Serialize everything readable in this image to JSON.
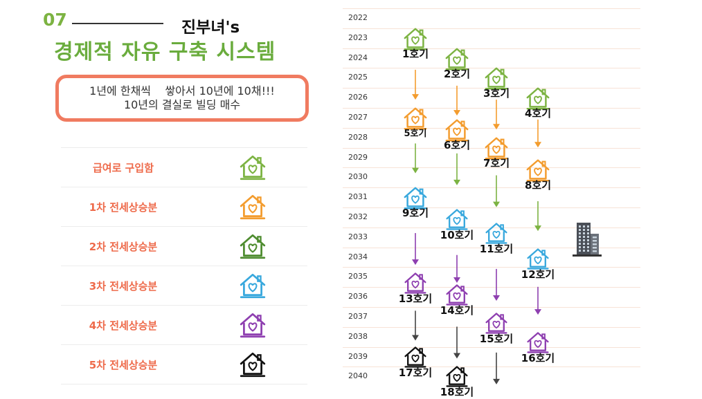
{
  "header": {
    "section_number": "07",
    "brand": "진부녀's",
    "title": "경제적 자유 구축 시스템"
  },
  "callout": {
    "line1": "1년에 한채씩    쌓아서 10년에 10채!!!",
    "line2": "10년의 결실로 빌딩 매수"
  },
  "colors": {
    "salary": "#7cb342",
    "round1": "#f39c2e",
    "round2": "#4e8c2f",
    "round3": "#38a8dd",
    "round4": "#8e3fb0",
    "round5": "#111111",
    "accent": "#ee6a4a",
    "title_green": "#6aac3d"
  },
  "legend": [
    {
      "label": "급여로 구입함",
      "color": "#7cb342",
      "icon": "house-heart-icon"
    },
    {
      "label": "1차 전세상승분",
      "color": "#f39c2e",
      "icon": "house-heart-icon"
    },
    {
      "label": "2차 전세상승분",
      "color": "#4e8c2f",
      "icon": "house-heart-icon"
    },
    {
      "label": "3차 전세상승분",
      "color": "#38a8dd",
      "icon": "house-heart-icon"
    },
    {
      "label": "4차 전세상승분",
      "color": "#8e3fb0",
      "icon": "house-heart-icon"
    },
    {
      "label": "5차 전세상승분",
      "color": "#111111",
      "icon": "house-heart-icon"
    }
  ],
  "years": [
    "2022",
    "2023",
    "2024",
    "2025",
    "2026",
    "2027",
    "2028",
    "2029",
    "2030",
    "2031",
    "2032",
    "2033",
    "2034",
    "2035",
    "2036",
    "2037",
    "2038",
    "2039",
    "2040"
  ],
  "houses": [
    {
      "label": "1호기",
      "year": 2023.0,
      "col": 1,
      "color": "#7cb342"
    },
    {
      "label": "2호기",
      "year": 2024.0,
      "col": 2,
      "color": "#7cb342"
    },
    {
      "label": "3호기",
      "year": 2025.0,
      "col": 3,
      "color": "#7cb342"
    },
    {
      "label": "4호기",
      "year": 2026.0,
      "col": 4,
      "color": "#7cb342"
    },
    {
      "label": "5호기",
      "year": 2027.0,
      "col": 1,
      "color": "#f39c2e"
    },
    {
      "label": "6호기",
      "year": 2027.6,
      "col": 2,
      "color": "#f39c2e"
    },
    {
      "label": "7호기",
      "year": 2028.5,
      "col": 3,
      "color": "#f39c2e"
    },
    {
      "label": "8호기",
      "year": 2029.6,
      "col": 4,
      "color": "#f39c2e"
    },
    {
      "label": "9호기",
      "year": 2031.0,
      "col": 1,
      "color": "#38a8dd"
    },
    {
      "label": "10호기",
      "year": 2032.1,
      "col": 2,
      "color": "#38a8dd"
    },
    {
      "label": "11호기",
      "year": 2032.8,
      "col": 3,
      "color": "#38a8dd"
    },
    {
      "label": "12호기",
      "year": 2034.1,
      "col": 4,
      "color": "#38a8dd"
    },
    {
      "label": "13호기",
      "year": 2035.3,
      "col": 1,
      "color": "#8e3fb0"
    },
    {
      "label": "14호기",
      "year": 2035.9,
      "col": 2,
      "color": "#8e3fb0"
    },
    {
      "label": "15호기",
      "year": 2037.3,
      "col": 3,
      "color": "#8e3fb0"
    },
    {
      "label": "16호기",
      "year": 2038.3,
      "col": 4,
      "color": "#8e3fb0"
    },
    {
      "label": "17호기",
      "year": 2039.0,
      "col": 1,
      "color": "#111111"
    },
    {
      "label": "18호기",
      "year": 2040.0,
      "col": 2,
      "color": "#111111"
    }
  ],
  "arrows": [
    {
      "col": 1,
      "from": 2024.6,
      "to": 2026.1,
      "color": "#f39c2e"
    },
    {
      "col": 2,
      "from": 2025.4,
      "to": 2026.9,
      "color": "#f39c2e"
    },
    {
      "col": 3,
      "from": 2026.1,
      "to": 2027.6,
      "color": "#f39c2e"
    },
    {
      "col": 4,
      "from": 2027.1,
      "to": 2028.5,
      "color": "#f39c2e"
    },
    {
      "col": 1,
      "from": 2028.3,
      "to": 2029.8,
      "color": "#7cb342"
    },
    {
      "col": 2,
      "from": 2028.8,
      "to": 2030.4,
      "color": "#7cb342"
    },
    {
      "col": 3,
      "from": 2029.9,
      "to": 2031.5,
      "color": "#7cb342"
    },
    {
      "col": 4,
      "from": 2031.2,
      "to": 2032.7,
      "color": "#7cb342"
    },
    {
      "col": 1,
      "from": 2032.8,
      "to": 2034.4,
      "color": "#8e3fb0"
    },
    {
      "col": 2,
      "from": 2033.9,
      "to": 2035.3,
      "color": "#8e3fb0"
    },
    {
      "col": 3,
      "from": 2034.6,
      "to": 2036.2,
      "color": "#8e3fb0"
    },
    {
      "col": 4,
      "from": 2035.5,
      "to": 2036.9,
      "color": "#8e3fb0"
    },
    {
      "col": 1,
      "from": 2036.7,
      "to": 2038.2,
      "color": "#444444"
    },
    {
      "col": 2,
      "from": 2037.5,
      "to": 2039.1,
      "color": "#444444"
    },
    {
      "col": 3,
      "from": 2038.8,
      "to": 2040.4,
      "color": "#444444"
    }
  ],
  "building_icon": "office-building-icon"
}
